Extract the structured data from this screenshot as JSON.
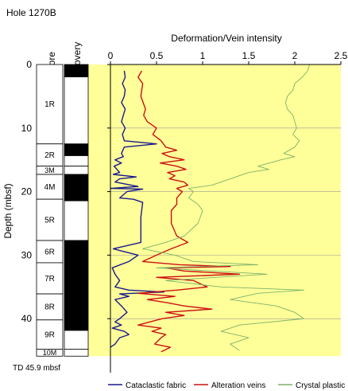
{
  "chart_data": {
    "type": "line",
    "title": "Hole 1270B",
    "xlabel": "Deformation/Vein intensity",
    "ylabel": "Depth (mbsf)",
    "column_headers": [
      "Core",
      "Recovery"
    ],
    "xlim": [
      0,
      2.5
    ],
    "ylim": [
      0,
      48.5
    ],
    "x_ticks": [
      "0",
      "0.5",
      "1",
      "1.5",
      "2",
      "2.5"
    ],
    "y_ticks": [
      "0",
      "10",
      "20",
      "30",
      "40"
    ],
    "y_tick_values": [
      0,
      10,
      20,
      30,
      40
    ],
    "td_label": "TD 45.9 mbsf",
    "td_depth": 45.9,
    "cores": [
      {
        "label": "1R",
        "top": 0,
        "bottom": 12.5,
        "recovery_bottom": 2.0
      },
      {
        "label": "2R",
        "top": 12.5,
        "bottom": 16.0,
        "recovery_bottom": 14.4
      },
      {
        "label": "3M",
        "top": 16.0,
        "bottom": 17.3,
        "recovery_bottom": 16.0
      },
      {
        "label": "4M",
        "top": 17.3,
        "bottom": 21.2,
        "recovery_bottom": 21.2
      },
      {
        "label": "5R",
        "top": 21.2,
        "bottom": 27.7,
        "recovery_bottom": 21.5
      },
      {
        "label": "6R",
        "top": 27.7,
        "bottom": 31.2,
        "recovery_bottom": 31.2
      },
      {
        "label": "7R",
        "top": 31.2,
        "bottom": 36.1,
        "recovery_bottom": 36.1
      },
      {
        "label": "8R",
        "top": 36.1,
        "bottom": 40.2,
        "recovery_bottom": 40.2
      },
      {
        "label": "9R",
        "top": 40.2,
        "bottom": 44.8,
        "recovery_bottom": 41.9
      },
      {
        "label": "10M",
        "top": 44.8,
        "bottom": 45.9,
        "recovery_bottom": 44.8
      }
    ],
    "series": [
      {
        "name": "Cataclastic fabric",
        "color": "#1a1a8c",
        "points": [
          [
            0.15,
            1
          ],
          [
            0.16,
            2
          ],
          [
            0.13,
            3
          ],
          [
            0.16,
            4
          ],
          [
            0.15,
            5
          ],
          [
            0.12,
            6
          ],
          [
            0.16,
            7
          ],
          [
            0.14,
            8
          ],
          [
            0.12,
            9
          ],
          [
            0.16,
            10
          ],
          [
            0.13,
            11
          ],
          [
            0.15,
            12
          ],
          [
            0.5,
            12.5
          ],
          [
            0.15,
            13
          ],
          [
            0.12,
            14
          ],
          [
            0.14,
            14.5
          ],
          [
            0.05,
            15
          ],
          [
            0.12,
            15.5
          ],
          [
            0.04,
            16
          ],
          [
            0.1,
            17
          ],
          [
            0.03,
            17.3
          ],
          [
            0.28,
            17.7
          ],
          [
            0.1,
            18
          ],
          [
            0.05,
            18.5
          ],
          [
            0.3,
            19.2
          ],
          [
            0.0,
            19.5
          ],
          [
            0.35,
            19.6
          ],
          [
            0.18,
            20
          ],
          [
            0.1,
            21
          ],
          [
            0.25,
            21.2
          ],
          [
            0.35,
            21.7
          ],
          [
            0.33,
            24
          ],
          [
            0.33,
            27
          ],
          [
            0.33,
            28
          ],
          [
            0.03,
            29
          ],
          [
            0.3,
            30
          ],
          [
            0.2,
            31
          ],
          [
            0.02,
            32
          ],
          [
            0.05,
            33
          ],
          [
            0.1,
            34
          ],
          [
            0.05,
            35
          ],
          [
            0.2,
            35.5
          ],
          [
            0.58,
            35.8
          ],
          [
            0.1,
            36.1
          ],
          [
            0.2,
            36.5
          ],
          [
            0.05,
            37
          ],
          [
            0.12,
            38
          ],
          [
            0.18,
            39
          ],
          [
            0.1,
            40
          ],
          [
            0.05,
            40.5
          ],
          [
            0.12,
            41
          ],
          [
            0.02,
            41.5
          ],
          [
            0.15,
            42
          ],
          [
            0.2,
            42.5
          ],
          [
            0.1,
            43
          ],
          [
            0.05,
            44
          ],
          [
            0.0,
            44.5
          ]
        ]
      },
      {
        "name": "Alteration veins",
        "color": "#cc1111",
        "points": [
          [
            0.34,
            1
          ],
          [
            0.3,
            2
          ],
          [
            0.35,
            3
          ],
          [
            0.33,
            5
          ],
          [
            0.38,
            7
          ],
          [
            0.36,
            8
          ],
          [
            0.4,
            9
          ],
          [
            0.5,
            10
          ],
          [
            0.46,
            11
          ],
          [
            0.55,
            12
          ],
          [
            0.6,
            13
          ],
          [
            0.72,
            13.5
          ],
          [
            0.56,
            14
          ],
          [
            0.64,
            14.5
          ],
          [
            0.8,
            15
          ],
          [
            0.54,
            15.5
          ],
          [
            0.72,
            16
          ],
          [
            0.82,
            16.5
          ],
          [
            0.62,
            17
          ],
          [
            0.7,
            17.5
          ],
          [
            0.64,
            18
          ],
          [
            0.8,
            18.5
          ],
          [
            0.84,
            19
          ],
          [
            0.72,
            19.5
          ],
          [
            0.78,
            20
          ],
          [
            0.72,
            21
          ],
          [
            0.72,
            22
          ],
          [
            0.66,
            23
          ],
          [
            0.66,
            25
          ],
          [
            0.72,
            27
          ],
          [
            0.84,
            28
          ],
          [
            0.66,
            29
          ],
          [
            0.5,
            30
          ],
          [
            0.35,
            31
          ],
          [
            0.75,
            31.5
          ],
          [
            1.3,
            31.8
          ],
          [
            0.6,
            32
          ],
          [
            0.8,
            32.5
          ],
          [
            1.4,
            33
          ],
          [
            0.5,
            33.5
          ],
          [
            0.9,
            34
          ],
          [
            1.05,
            35
          ],
          [
            0.72,
            35.5
          ],
          [
            0.3,
            36
          ],
          [
            0.7,
            36.5
          ],
          [
            0.4,
            37
          ],
          [
            0.62,
            37.5
          ],
          [
            0.8,
            38
          ],
          [
            1.1,
            38.5
          ],
          [
            0.6,
            39
          ],
          [
            0.8,
            39.5
          ],
          [
            0.56,
            40
          ],
          [
            0.3,
            41
          ],
          [
            0.55,
            41.5
          ],
          [
            0.45,
            42
          ],
          [
            0.6,
            42.5
          ],
          [
            0.55,
            43
          ],
          [
            0.48,
            44
          ],
          [
            0.65,
            44.5
          ],
          [
            0.55,
            45.2
          ]
        ]
      },
      {
        "name": "Crystal plastic",
        "color": "#7db26a",
        "points": [
          [
            2.16,
            0
          ],
          [
            2.14,
            1
          ],
          [
            2.08,
            2
          ],
          [
            2.0,
            3
          ],
          [
            1.98,
            4
          ],
          [
            1.92,
            5
          ],
          [
            1.9,
            6
          ],
          [
            1.92,
            7
          ],
          [
            1.98,
            8
          ],
          [
            2.0,
            9
          ],
          [
            2.02,
            10
          ],
          [
            1.98,
            11
          ],
          [
            2.05,
            12
          ],
          [
            2.0,
            13
          ],
          [
            1.88,
            14
          ],
          [
            2.0,
            14.5
          ],
          [
            1.85,
            15
          ],
          [
            1.6,
            16
          ],
          [
            1.72,
            16.5
          ],
          [
            1.5,
            17
          ],
          [
            1.3,
            18
          ],
          [
            1.1,
            19
          ],
          [
            0.85,
            19.5
          ],
          [
            0.9,
            20
          ],
          [
            0.85,
            21
          ],
          [
            0.95,
            22
          ],
          [
            1.0,
            23
          ],
          [
            0.95,
            25
          ],
          [
            0.8,
            27
          ],
          [
            0.6,
            28
          ],
          [
            0.35,
            29
          ],
          [
            0.7,
            30
          ],
          [
            0.9,
            31
          ],
          [
            1.6,
            31.5
          ],
          [
            0.5,
            32
          ],
          [
            1.7,
            33
          ],
          [
            0.6,
            34
          ],
          [
            1.2,
            35
          ],
          [
            2.1,
            35.5
          ],
          [
            1.6,
            36
          ],
          [
            1.3,
            37
          ],
          [
            1.8,
            38
          ],
          [
            2.0,
            39
          ],
          [
            2.1,
            40
          ],
          [
            1.4,
            41
          ],
          [
            1.2,
            42
          ],
          [
            1.5,
            43
          ],
          [
            1.3,
            44
          ],
          [
            1.4,
            45
          ]
        ]
      }
    ],
    "legend_position": "bottom"
  }
}
